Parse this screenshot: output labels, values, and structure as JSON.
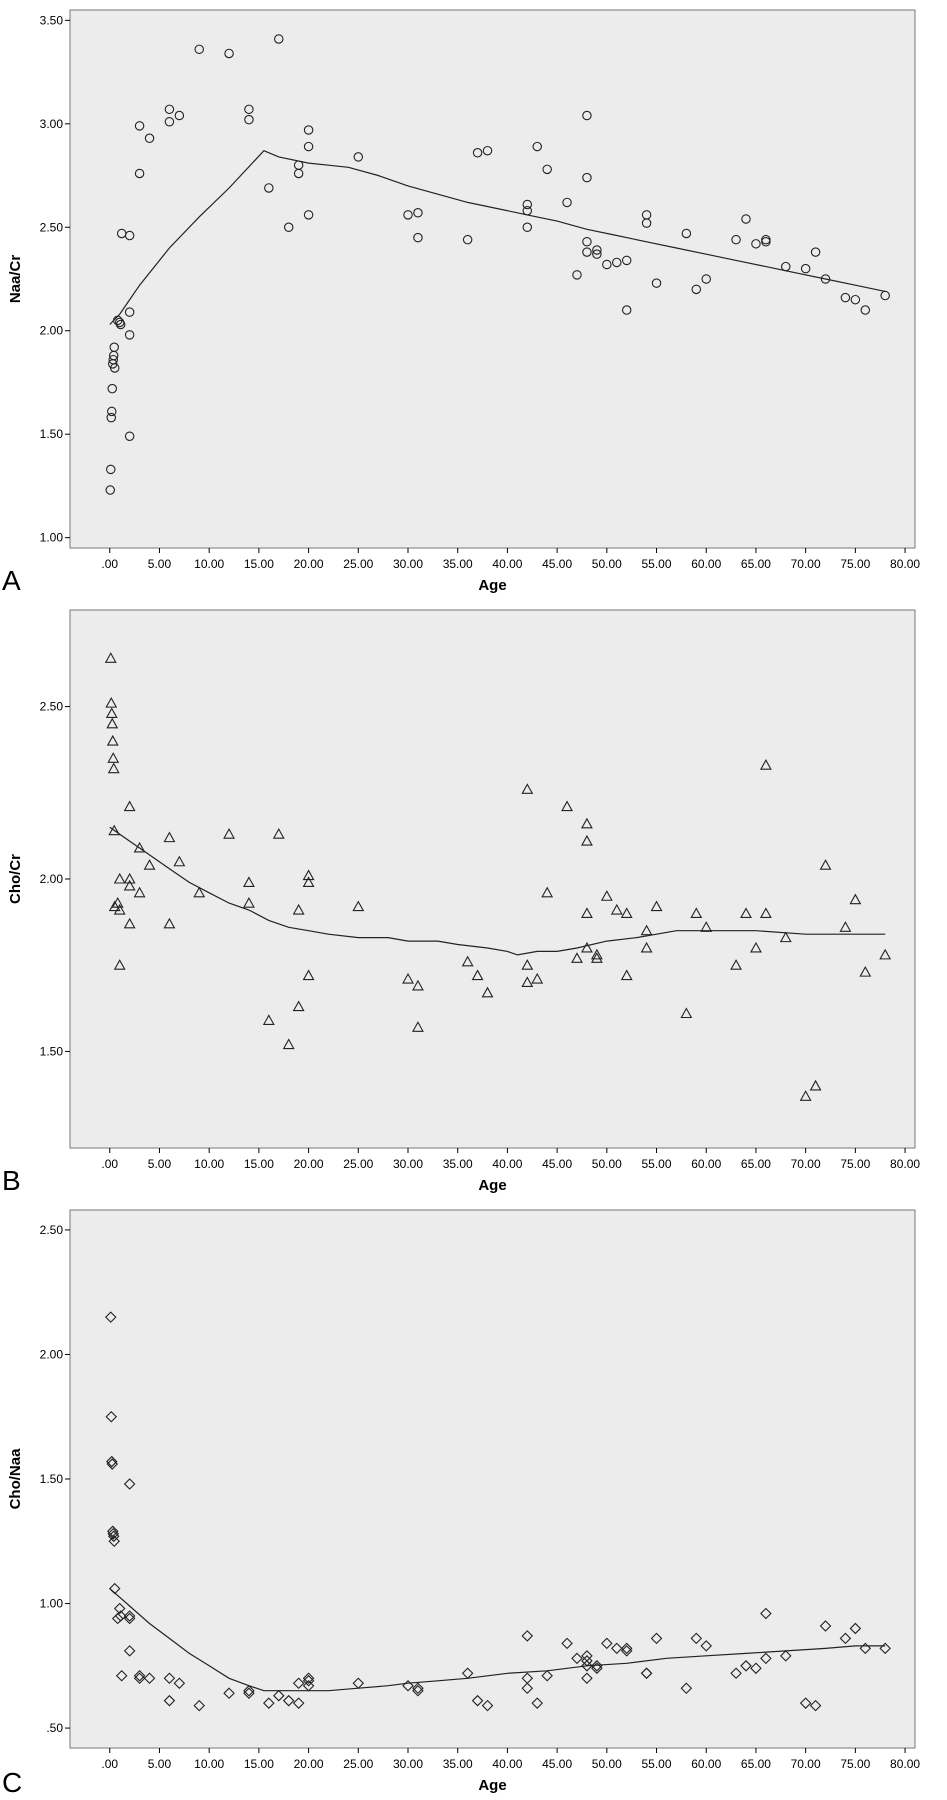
{
  "chart_data": [
    {
      "panel_label": "A",
      "type": "scatter",
      "marker": "circle",
      "xlabel": "Age",
      "ylabel": "Naa/Cr",
      "xlim": [
        -4,
        81
      ],
      "ylim": [
        0.95,
        3.55
      ],
      "xticks": [
        ".00",
        "5.00",
        "10.00",
        "15.00",
        "20.00",
        "25.00",
        "30.00",
        "35.00",
        "40.00",
        "45.00",
        "50.00",
        "55.00",
        "60.00",
        "65.00",
        "70.00",
        "75.00",
        "80.00"
      ],
      "xtick_values": [
        0,
        5,
        10,
        15,
        20,
        25,
        30,
        35,
        40,
        45,
        50,
        55,
        60,
        65,
        70,
        75,
        80
      ],
      "yticks": [
        "1.00",
        "1.50",
        "2.00",
        "2.50",
        "3.00",
        "3.50"
      ],
      "ytick_values": [
        1.0,
        1.5,
        2.0,
        2.5,
        3.0,
        3.5
      ],
      "points": [
        [
          0.05,
          1.23
        ],
        [
          0.1,
          1.33
        ],
        [
          0.15,
          1.58
        ],
        [
          0.2,
          1.61
        ],
        [
          0.25,
          1.72
        ],
        [
          0.3,
          1.84
        ],
        [
          0.35,
          1.86
        ],
        [
          0.4,
          1.88
        ],
        [
          0.45,
          1.92
        ],
        [
          0.5,
          1.82
        ],
        [
          0.8,
          2.05
        ],
        [
          1.0,
          2.04
        ],
        [
          1.1,
          2.03
        ],
        [
          1.2,
          2.47
        ],
        [
          2.0,
          2.46
        ],
        [
          2.0,
          2.09
        ],
        [
          2.0,
          1.98
        ],
        [
          2.0,
          1.49
        ],
        [
          3.0,
          2.99
        ],
        [
          3.0,
          2.76
        ],
        [
          4.0,
          2.93
        ],
        [
          6.0,
          3.07
        ],
        [
          6.0,
          3.01
        ],
        [
          7.0,
          3.04
        ],
        [
          9.0,
          3.36
        ],
        [
          12.0,
          3.34
        ],
        [
          14.0,
          3.07
        ],
        [
          14.0,
          3.02
        ],
        [
          16.0,
          2.69
        ],
        [
          17.0,
          3.41
        ],
        [
          18.0,
          2.5
        ],
        [
          19.0,
          2.8
        ],
        [
          19.0,
          2.76
        ],
        [
          20.0,
          2.97
        ],
        [
          20.0,
          2.89
        ],
        [
          20.0,
          2.56
        ],
        [
          25.0,
          2.84
        ],
        [
          30.0,
          2.56
        ],
        [
          31.0,
          2.57
        ],
        [
          31.0,
          2.45
        ],
        [
          36.0,
          2.44
        ],
        [
          37.0,
          2.86
        ],
        [
          38.0,
          2.87
        ],
        [
          42.0,
          2.61
        ],
        [
          42.0,
          2.58
        ],
        [
          42.0,
          2.5
        ],
        [
          43.0,
          2.89
        ],
        [
          44.0,
          2.78
        ],
        [
          46.0,
          2.62
        ],
        [
          47.0,
          2.27
        ],
        [
          48.0,
          3.04
        ],
        [
          48.0,
          2.74
        ],
        [
          48.0,
          2.43
        ],
        [
          48.0,
          2.38
        ],
        [
          49.0,
          2.39
        ],
        [
          49.0,
          2.37
        ],
        [
          50.0,
          2.32
        ],
        [
          51.0,
          2.33
        ],
        [
          52.0,
          2.34
        ],
        [
          52.0,
          2.1
        ],
        [
          54.0,
          2.56
        ],
        [
          54.0,
          2.52
        ],
        [
          55.0,
          2.23
        ],
        [
          58.0,
          2.47
        ],
        [
          59.0,
          2.2
        ],
        [
          60.0,
          2.25
        ],
        [
          63.0,
          2.44
        ],
        [
          64.0,
          2.54
        ],
        [
          65.0,
          2.42
        ],
        [
          66.0,
          2.43
        ],
        [
          66.0,
          2.44
        ],
        [
          68.0,
          2.31
        ],
        [
          70.0,
          2.3
        ],
        [
          71.0,
          2.38
        ],
        [
          72.0,
          2.25
        ],
        [
          74.0,
          2.16
        ],
        [
          75.0,
          2.15
        ],
        [
          76.0,
          2.1
        ],
        [
          78.0,
          2.17
        ]
      ],
      "fit_line": [
        [
          0.0,
          2.03
        ],
        [
          1.0,
          2.08
        ],
        [
          3.0,
          2.22
        ],
        [
          6.0,
          2.4
        ],
        [
          9.0,
          2.55
        ],
        [
          12.0,
          2.69
        ],
        [
          15.5,
          2.87
        ],
        [
          17.0,
          2.84
        ],
        [
          20.0,
          2.81
        ],
        [
          22.0,
          2.8
        ],
        [
          24.0,
          2.79
        ],
        [
          27.0,
          2.75
        ],
        [
          30.0,
          2.7
        ],
        [
          33.0,
          2.66
        ],
        [
          36.0,
          2.62
        ],
        [
          39.0,
          2.59
        ],
        [
          42.0,
          2.56
        ],
        [
          45.0,
          2.53
        ],
        [
          48.0,
          2.49
        ],
        [
          51.0,
          2.46
        ],
        [
          54.0,
          2.43
        ],
        [
          57.0,
          2.4
        ],
        [
          60.0,
          2.37
        ],
        [
          63.0,
          2.34
        ],
        [
          66.0,
          2.31
        ],
        [
          69.0,
          2.28
        ],
        [
          72.0,
          2.25
        ],
        [
          75.0,
          2.22
        ],
        [
          78.0,
          2.19
        ]
      ]
    },
    {
      "panel_label": "B",
      "type": "scatter",
      "marker": "triangle",
      "xlabel": "Age",
      "ylabel": "Cho/Cr",
      "xlim": [
        -4,
        81
      ],
      "ylim": [
        1.22,
        2.78
      ],
      "xticks": [
        ".00",
        "5.00",
        "10.00",
        "15.00",
        "20.00",
        "25.00",
        "30.00",
        "35.00",
        "40.00",
        "45.00",
        "50.00",
        "55.00",
        "60.00",
        "65.00",
        "70.00",
        "75.00",
        "80.00"
      ],
      "xtick_values": [
        0,
        5,
        10,
        15,
        20,
        25,
        30,
        35,
        40,
        45,
        50,
        55,
        60,
        65,
        70,
        75,
        80
      ],
      "yticks": [
        "1.50",
        "2.00",
        "2.50"
      ],
      "ytick_values": [
        1.5,
        2.0,
        2.5
      ],
      "points": [
        [
          0.1,
          2.64
        ],
        [
          0.15,
          2.51
        ],
        [
          0.2,
          2.48
        ],
        [
          0.25,
          2.45
        ],
        [
          0.3,
          2.4
        ],
        [
          0.35,
          2.35
        ],
        [
          0.4,
          2.32
        ],
        [
          0.45,
          2.14
        ],
        [
          0.5,
          1.92
        ],
        [
          0.8,
          1.93
        ],
        [
          1.0,
          1.91
        ],
        [
          1.0,
          2.0
        ],
        [
          1.0,
          1.75
        ],
        [
          2.0,
          2.21
        ],
        [
          2.0,
          2.0
        ],
        [
          2.0,
          1.98
        ],
        [
          2.0,
          1.87
        ],
        [
          3.0,
          2.09
        ],
        [
          3.0,
          1.96
        ],
        [
          4.0,
          2.04
        ],
        [
          6.0,
          2.12
        ],
        [
          6.0,
          1.87
        ],
        [
          7.0,
          2.05
        ],
        [
          9.0,
          1.96
        ],
        [
          12.0,
          2.13
        ],
        [
          14.0,
          1.99
        ],
        [
          14.0,
          1.93
        ],
        [
          16.0,
          1.59
        ],
        [
          17.0,
          2.13
        ],
        [
          18.0,
          1.52
        ],
        [
          19.0,
          1.91
        ],
        [
          19.0,
          1.63
        ],
        [
          20.0,
          2.01
        ],
        [
          20.0,
          1.99
        ],
        [
          20.0,
          1.72
        ],
        [
          25.0,
          1.92
        ],
        [
          30.0,
          1.71
        ],
        [
          31.0,
          1.69
        ],
        [
          31.0,
          1.57
        ],
        [
          36.0,
          1.76
        ],
        [
          37.0,
          1.72
        ],
        [
          38.0,
          1.67
        ],
        [
          42.0,
          2.26
        ],
        [
          42.0,
          1.75
        ],
        [
          42.0,
          1.7
        ],
        [
          43.0,
          1.71
        ],
        [
          44.0,
          1.96
        ],
        [
          46.0,
          2.21
        ],
        [
          47.0,
          1.77
        ],
        [
          48.0,
          2.16
        ],
        [
          48.0,
          2.11
        ],
        [
          48.0,
          1.9
        ],
        [
          48.0,
          1.8
        ],
        [
          49.0,
          1.78
        ],
        [
          49.0,
          1.77
        ],
        [
          50.0,
          1.95
        ],
        [
          51.0,
          1.91
        ],
        [
          52.0,
          1.9
        ],
        [
          52.0,
          1.72
        ],
        [
          54.0,
          1.85
        ],
        [
          54.0,
          1.8
        ],
        [
          55.0,
          1.92
        ],
        [
          58.0,
          1.61
        ],
        [
          59.0,
          1.9
        ],
        [
          60.0,
          1.86
        ],
        [
          63.0,
          1.75
        ],
        [
          64.0,
          1.9
        ],
        [
          65.0,
          1.8
        ],
        [
          66.0,
          2.33
        ],
        [
          66.0,
          1.9
        ],
        [
          68.0,
          1.83
        ],
        [
          70.0,
          1.37
        ],
        [
          71.0,
          1.4
        ],
        [
          72.0,
          2.04
        ],
        [
          74.0,
          1.86
        ],
        [
          75.0,
          1.94
        ],
        [
          76.0,
          1.73
        ],
        [
          78.0,
          1.78
        ]
      ],
      "fit_line": [
        [
          0.0,
          2.15
        ],
        [
          2.0,
          2.11
        ],
        [
          4.0,
          2.07
        ],
        [
          6.0,
          2.03
        ],
        [
          8.0,
          1.99
        ],
        [
          10.0,
          1.96
        ],
        [
          12.0,
          1.93
        ],
        [
          14.0,
          1.91
        ],
        [
          16.0,
          1.88
        ],
        [
          18.0,
          1.86
        ],
        [
          20.0,
          1.85
        ],
        [
          22.0,
          1.84
        ],
        [
          25.0,
          1.83
        ],
        [
          28.0,
          1.83
        ],
        [
          30.0,
          1.82
        ],
        [
          33.0,
          1.82
        ],
        [
          35.0,
          1.81
        ],
        [
          38.0,
          1.8
        ],
        [
          40.0,
          1.79
        ],
        [
          41.0,
          1.78
        ],
        [
          43.0,
          1.79
        ],
        [
          45.0,
          1.79
        ],
        [
          47.0,
          1.8
        ],
        [
          50.0,
          1.82
        ],
        [
          53.0,
          1.83
        ],
        [
          55.0,
          1.84
        ],
        [
          57.0,
          1.85
        ],
        [
          60.0,
          1.85
        ],
        [
          65.0,
          1.85
        ],
        [
          70.0,
          1.84
        ],
        [
          75.0,
          1.84
        ],
        [
          78.0,
          1.84
        ]
      ]
    },
    {
      "panel_label": "C",
      "type": "scatter",
      "marker": "diamond",
      "xlabel": "Age",
      "ylabel": "Cho/Naa",
      "xlim": [
        -4,
        81
      ],
      "ylim": [
        0.42,
        2.58
      ],
      "xticks": [
        ".00",
        "5.00",
        "10.00",
        "15.00",
        "20.00",
        "25.00",
        "30.00",
        "35.00",
        "40.00",
        "45.00",
        "50.00",
        "55.00",
        "60.00",
        "65.00",
        "70.00",
        "75.00",
        "80.00"
      ],
      "xtick_values": [
        0,
        5,
        10,
        15,
        20,
        25,
        30,
        35,
        40,
        45,
        50,
        55,
        60,
        65,
        70,
        75,
        80
      ],
      "yticks": [
        ".50",
        "1.00",
        "1.50",
        "2.00",
        "2.50"
      ],
      "ytick_values": [
        0.5,
        1.0,
        1.5,
        2.0,
        2.5
      ],
      "points": [
        [
          0.1,
          2.15
        ],
        [
          0.15,
          1.75
        ],
        [
          0.2,
          1.57
        ],
        [
          0.25,
          1.56
        ],
        [
          0.3,
          1.29
        ],
        [
          0.35,
          1.28
        ],
        [
          0.4,
          1.27
        ],
        [
          0.45,
          1.25
        ],
        [
          0.5,
          1.06
        ],
        [
          0.8,
          0.94
        ],
        [
          1.0,
          0.98
        ],
        [
          1.1,
          0.95
        ],
        [
          1.2,
          0.71
        ],
        [
          2.0,
          1.48
        ],
        [
          2.0,
          0.95
        ],
        [
          2.0,
          0.94
        ],
        [
          2.0,
          0.81
        ],
        [
          3.0,
          0.71
        ],
        [
          3.0,
          0.7
        ],
        [
          4.0,
          0.7
        ],
        [
          6.0,
          0.7
        ],
        [
          6.0,
          0.61
        ],
        [
          7.0,
          0.68
        ],
        [
          9.0,
          0.59
        ],
        [
          12.0,
          0.64
        ],
        [
          14.0,
          0.65
        ],
        [
          14.0,
          0.64
        ],
        [
          16.0,
          0.6
        ],
        [
          17.0,
          0.63
        ],
        [
          18.0,
          0.61
        ],
        [
          19.0,
          0.68
        ],
        [
          19.0,
          0.6
        ],
        [
          20.0,
          0.7
        ],
        [
          20.0,
          0.69
        ],
        [
          20.0,
          0.67
        ],
        [
          25.0,
          0.68
        ],
        [
          30.0,
          0.67
        ],
        [
          31.0,
          0.66
        ],
        [
          31.0,
          0.65
        ],
        [
          36.0,
          0.72
        ],
        [
          37.0,
          0.61
        ],
        [
          38.0,
          0.59
        ],
        [
          42.0,
          0.87
        ],
        [
          42.0,
          0.7
        ],
        [
          42.0,
          0.66
        ],
        [
          43.0,
          0.6
        ],
        [
          44.0,
          0.71
        ],
        [
          46.0,
          0.84
        ],
        [
          47.0,
          0.78
        ],
        [
          48.0,
          0.79
        ],
        [
          48.0,
          0.77
        ],
        [
          48.0,
          0.75
        ],
        [
          48.0,
          0.7
        ],
        [
          49.0,
          0.75
        ],
        [
          49.0,
          0.74
        ],
        [
          50.0,
          0.84
        ],
        [
          51.0,
          0.82
        ],
        [
          52.0,
          0.82
        ],
        [
          52.0,
          0.81
        ],
        [
          54.0,
          0.72
        ],
        [
          54.0,
          0.72
        ],
        [
          55.0,
          0.86
        ],
        [
          58.0,
          0.66
        ],
        [
          59.0,
          0.86
        ],
        [
          60.0,
          0.83
        ],
        [
          63.0,
          0.72
        ],
        [
          64.0,
          0.75
        ],
        [
          65.0,
          0.74
        ],
        [
          66.0,
          0.96
        ],
        [
          66.0,
          0.78
        ],
        [
          68.0,
          0.79
        ],
        [
          70.0,
          0.6
        ],
        [
          71.0,
          0.59
        ],
        [
          72.0,
          0.91
        ],
        [
          74.0,
          0.86
        ],
        [
          75.0,
          0.9
        ],
        [
          76.0,
          0.82
        ],
        [
          78.0,
          0.82
        ]
      ],
      "fit_line": [
        [
          0.0,
          1.06
        ],
        [
          2.0,
          0.99
        ],
        [
          4.0,
          0.92
        ],
        [
          6.0,
          0.86
        ],
        [
          8.0,
          0.8
        ],
        [
          10.0,
          0.75
        ],
        [
          12.0,
          0.7
        ],
        [
          14.0,
          0.67
        ],
        [
          15.5,
          0.65
        ],
        [
          18.0,
          0.65
        ],
        [
          20.0,
          0.65
        ],
        [
          22.0,
          0.65
        ],
        [
          25.0,
          0.66
        ],
        [
          28.0,
          0.67
        ],
        [
          30.0,
          0.68
        ],
        [
          33.0,
          0.69
        ],
        [
          36.0,
          0.7
        ],
        [
          40.0,
          0.72
        ],
        [
          44.0,
          0.73
        ],
        [
          48.0,
          0.75
        ],
        [
          52.0,
          0.76
        ],
        [
          56.0,
          0.78
        ],
        [
          60.0,
          0.79
        ],
        [
          64.0,
          0.8
        ],
        [
          68.0,
          0.81
        ],
        [
          72.0,
          0.82
        ],
        [
          75.0,
          0.83
        ],
        [
          78.0,
          0.83
        ]
      ]
    }
  ]
}
